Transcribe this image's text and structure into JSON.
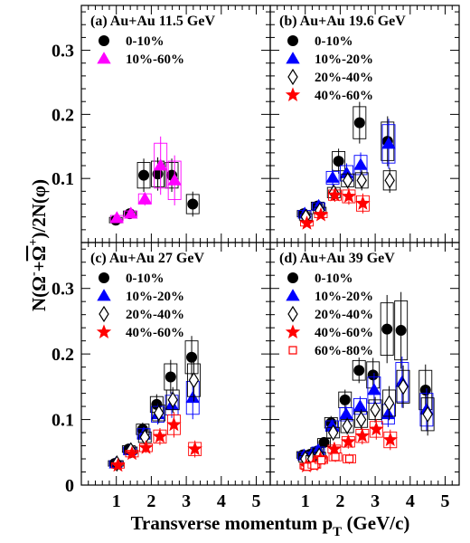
{
  "ylabel_main": "N(Ω",
  "ylabel_sup1": "-",
  "ylabel_mid": "+",
  "ylabel_omegabar": "Ω",
  "ylabel_sup2": "+",
  "ylabel_tail": ")/2N(φ)",
  "xlabel_main": "Transverse momentum p",
  "xlabel_sub": "T",
  "xlabel_tail": " (GeV/c)",
  "chart_data": [
    {
      "type": "scatter",
      "title": "(a) Au+Au 11.5 GeV",
      "xlim": [
        0,
        5.4
      ],
      "ylim": [
        0,
        0.37
      ],
      "xticks": [],
      "yticks": [
        "0.1",
        "0.2",
        "0.3"
      ],
      "series": [
        {
          "name": "0-10%",
          "marker": "circle",
          "color": "#000000",
          "points": [
            [
              1.0,
              0.035,
              0.004
            ],
            [
              1.4,
              0.045,
              0.004
            ],
            [
              1.8,
              0.105,
              0.02
            ],
            [
              2.2,
              0.107,
              0.02
            ],
            [
              2.6,
              0.105,
              0.02
            ],
            [
              3.2,
              0.06,
              0.015
            ]
          ]
        },
        {
          "name": "10%-60%",
          "marker": "triangle",
          "color": "#ff00ff",
          "points": [
            [
              1.0,
              0.038,
              0.004
            ],
            [
              1.4,
              0.045,
              0.004
            ],
            [
              1.8,
              0.068,
              0.008
            ],
            [
              2.25,
              0.12,
              0.035
            ],
            [
              2.65,
              0.097,
              0.03
            ]
          ]
        }
      ]
    },
    {
      "type": "scatter",
      "title": "(b) Au+Au 19.6 GeV",
      "xlim": [
        0,
        5.4
      ],
      "ylim": [
        0,
        0.37
      ],
      "xticks": [],
      "yticks": [],
      "series": [
        {
          "name": "0-10%",
          "marker": "circle",
          "color": "#000000",
          "points": [
            [
              1.0,
              0.045,
              0.005
            ],
            [
              1.4,
              0.057,
              0.006
            ],
            [
              2.0,
              0.127,
              0.015
            ],
            [
              2.6,
              0.187,
              0.025
            ],
            [
              3.4,
              0.158,
              0.03
            ]
          ]
        },
        {
          "name": "10%-20%",
          "marker": "triangle",
          "color": "#0000ff",
          "points": [
            [
              1.0,
              0.045,
              0.005
            ],
            [
              1.4,
              0.057,
              0.005
            ],
            [
              1.8,
              0.101,
              0.01
            ],
            [
              2.2,
              0.108,
              0.012
            ],
            [
              2.6,
              0.121,
              0.015
            ],
            [
              3.4,
              0.154,
              0.03
            ]
          ]
        },
        {
          "name": "20%-40%",
          "marker": "diamond",
          "color": "#000000",
          "points": [
            [
              1.0,
              0.04,
              0.005
            ],
            [
              1.4,
              0.05,
              0.005
            ],
            [
              1.8,
              0.078,
              0.008
            ],
            [
              2.2,
              0.097,
              0.01
            ],
            [
              2.6,
              0.097,
              0.012
            ],
            [
              3.4,
              0.097,
              0.015
            ]
          ]
        },
        {
          "name": "40%-60%",
          "marker": "star",
          "color": "#ff0000",
          "points": [
            [
              1.0,
              0.03,
              0.004
            ],
            [
              1.4,
              0.043,
              0.004
            ],
            [
              1.8,
              0.074,
              0.008
            ],
            [
              2.2,
              0.072,
              0.01
            ],
            [
              2.6,
              0.061,
              0.012
            ]
          ]
        }
      ]
    },
    {
      "type": "scatter",
      "title": "(c) Au+Au 27 GeV",
      "xlim": [
        0,
        5.4
      ],
      "ylim": [
        0,
        0.37
      ],
      "xticks": [
        "1",
        "2",
        "3",
        "4",
        "5"
      ],
      "yticks": [
        "0",
        "0.1",
        "0.2",
        "0.3"
      ],
      "series": [
        {
          "name": "0-10%",
          "marker": "circle",
          "color": "#000000",
          "points": [
            [
              1.0,
              0.033,
              0.004
            ],
            [
              1.4,
              0.055,
              0.005
            ],
            [
              1.8,
              0.085,
              0.008
            ],
            [
              2.2,
              0.123,
              0.012
            ],
            [
              2.6,
              0.165,
              0.02
            ],
            [
              3.2,
              0.195,
              0.025
            ]
          ]
        },
        {
          "name": "10%-20%",
          "marker": "triangle",
          "color": "#0000ff",
          "points": [
            [
              1.0,
              0.033,
              0.004
            ],
            [
              1.4,
              0.053,
              0.005
            ],
            [
              1.8,
              0.078,
              0.008
            ],
            [
              2.2,
              0.108,
              0.012
            ],
            [
              2.6,
              0.122,
              0.015
            ],
            [
              3.2,
              0.133,
              0.025
            ]
          ]
        },
        {
          "name": "20%-40%",
          "marker": "diamond",
          "color": "#000000",
          "points": [
            [
              1.0,
              0.033,
              0.004
            ],
            [
              1.4,
              0.053,
              0.005
            ],
            [
              1.8,
              0.073,
              0.008
            ],
            [
              2.2,
              0.11,
              0.012
            ],
            [
              2.6,
              0.13,
              0.015
            ],
            [
              3.2,
              0.16,
              0.025
            ]
          ]
        },
        {
          "name": "40%-60%",
          "marker": "star",
          "color": "#ff0000",
          "points": [
            [
              1.0,
              0.03,
              0.004
            ],
            [
              1.4,
              0.048,
              0.005
            ],
            [
              1.8,
              0.057,
              0.006
            ],
            [
              2.2,
              0.074,
              0.01
            ],
            [
              2.6,
              0.092,
              0.015
            ],
            [
              3.2,
              0.055,
              0.01
            ]
          ]
        }
      ]
    },
    {
      "type": "scatter",
      "title": "(d) Au+Au 39 GeV",
      "xlim": [
        0,
        5.4
      ],
      "ylim": [
        0,
        0.37
      ],
      "xticks": [
        "1",
        "2",
        "3",
        "4",
        "5"
      ],
      "yticks": [],
      "series": [
        {
          "name": "0-10%",
          "marker": "circle",
          "color": "#000000",
          "points": [
            [
              1.0,
              0.046,
              0.005
            ],
            [
              1.2,
              0.047,
              0.005
            ],
            [
              1.4,
              0.052,
              0.005
            ],
            [
              1.6,
              0.065,
              0.006
            ],
            [
              1.8,
              0.095,
              0.008
            ],
            [
              2.2,
              0.13,
              0.012
            ],
            [
              2.6,
              0.175,
              0.015
            ],
            [
              3.0,
              0.168,
              0.02
            ],
            [
              3.4,
              0.238,
              0.04
            ],
            [
              3.8,
              0.236,
              0.045
            ],
            [
              4.5,
              0.145,
              0.03
            ]
          ]
        },
        {
          "name": "10%-20%",
          "marker": "triangle",
          "color": "#0000ff",
          "points": [
            [
              1.0,
              0.045,
              0.005
            ],
            [
              1.2,
              0.045,
              0.005
            ],
            [
              1.4,
              0.053,
              0.005
            ],
            [
              1.8,
              0.09,
              0.008
            ],
            [
              2.2,
              0.108,
              0.01
            ],
            [
              2.6,
              0.12,
              0.012
            ],
            [
              3.0,
              0.145,
              0.02
            ],
            [
              3.4,
              0.108,
              0.015
            ],
            [
              3.8,
              0.157,
              0.03
            ],
            [
              4.5,
              0.115,
              0.025
            ]
          ]
        },
        {
          "name": "20%-40%",
          "marker": "diamond",
          "color": "#000000",
          "points": [
            [
              1.0,
              0.04,
              0.005
            ],
            [
              1.2,
              0.04,
              0.005
            ],
            [
              1.4,
              0.045,
              0.005
            ],
            [
              1.8,
              0.08,
              0.008
            ],
            [
              2.2,
              0.09,
              0.01
            ],
            [
              2.6,
              0.1,
              0.012
            ],
            [
              3.0,
              0.115,
              0.015
            ],
            [
              3.4,
              0.125,
              0.02
            ],
            [
              3.8,
              0.15,
              0.025
            ],
            [
              4.5,
              0.108,
              0.025
            ]
          ]
        },
        {
          "name": "40%-60%",
          "marker": "star",
          "color": "#ff0000",
          "points": [
            [
              1.0,
              0.029,
              0.004
            ],
            [
              1.2,
              0.031,
              0.004
            ],
            [
              1.4,
              0.04,
              0.005
            ],
            [
              1.8,
              0.055,
              0.006
            ],
            [
              2.2,
              0.066,
              0.008
            ],
            [
              2.6,
              0.075,
              0.01
            ],
            [
              3.0,
              0.085,
              0.012
            ],
            [
              3.4,
              0.069,
              0.012
            ]
          ]
        },
        {
          "name": "60%-80%",
          "marker": "open-square",
          "color": "#ff0000",
          "points": [
            [
              1.0,
              0.028,
              0.004
            ],
            [
              1.2,
              0.03,
              0.004
            ],
            [
              1.4,
              0.038,
              0.005
            ],
            [
              1.8,
              0.043,
              0.006
            ],
            [
              2.2,
              0.04,
              0.006
            ]
          ]
        }
      ]
    }
  ]
}
